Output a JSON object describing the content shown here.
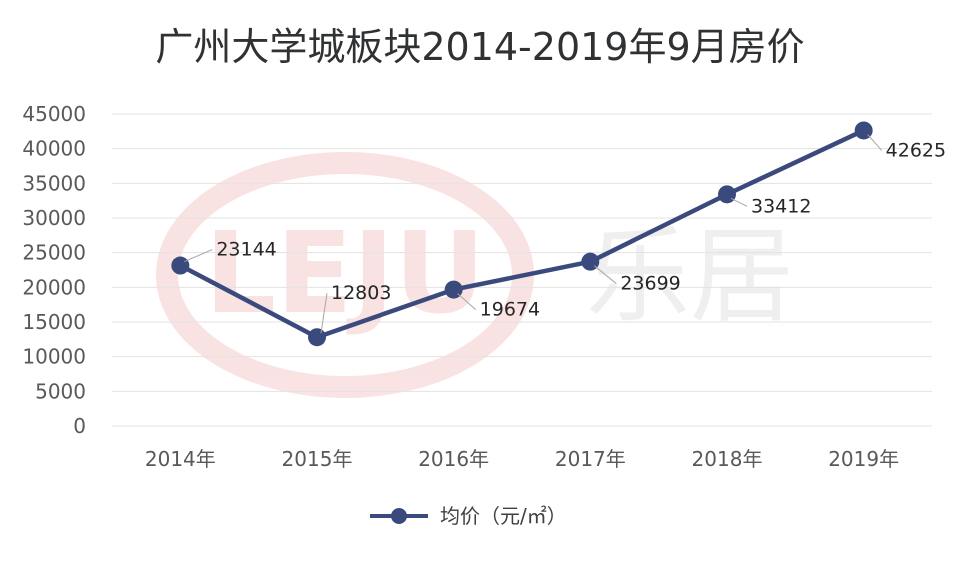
{
  "chart_data": {
    "type": "line",
    "title": "广州大学城板块2014-2019年9月房价",
    "xlabel": "",
    "ylabel": "",
    "categories": [
      "2014年",
      "2015年",
      "2016年",
      "2017年",
      "2018年",
      "2019年"
    ],
    "series": [
      {
        "name": "均价（元/㎡）",
        "values": [
          23144,
          12803,
          19674,
          23699,
          33412,
          42625
        ],
        "color": "#3b4a7c"
      }
    ],
    "ylim": [
      0,
      45000
    ],
    "yticks": [
      0,
      5000,
      10000,
      15000,
      20000,
      25000,
      30000,
      35000,
      40000,
      45000
    ],
    "data_labels": [
      "23144",
      "12803",
      "19674",
      "23699",
      "33412",
      "42625"
    ],
    "grid": true,
    "legend_position": "bottom",
    "watermark": "LEJU 乐居"
  }
}
